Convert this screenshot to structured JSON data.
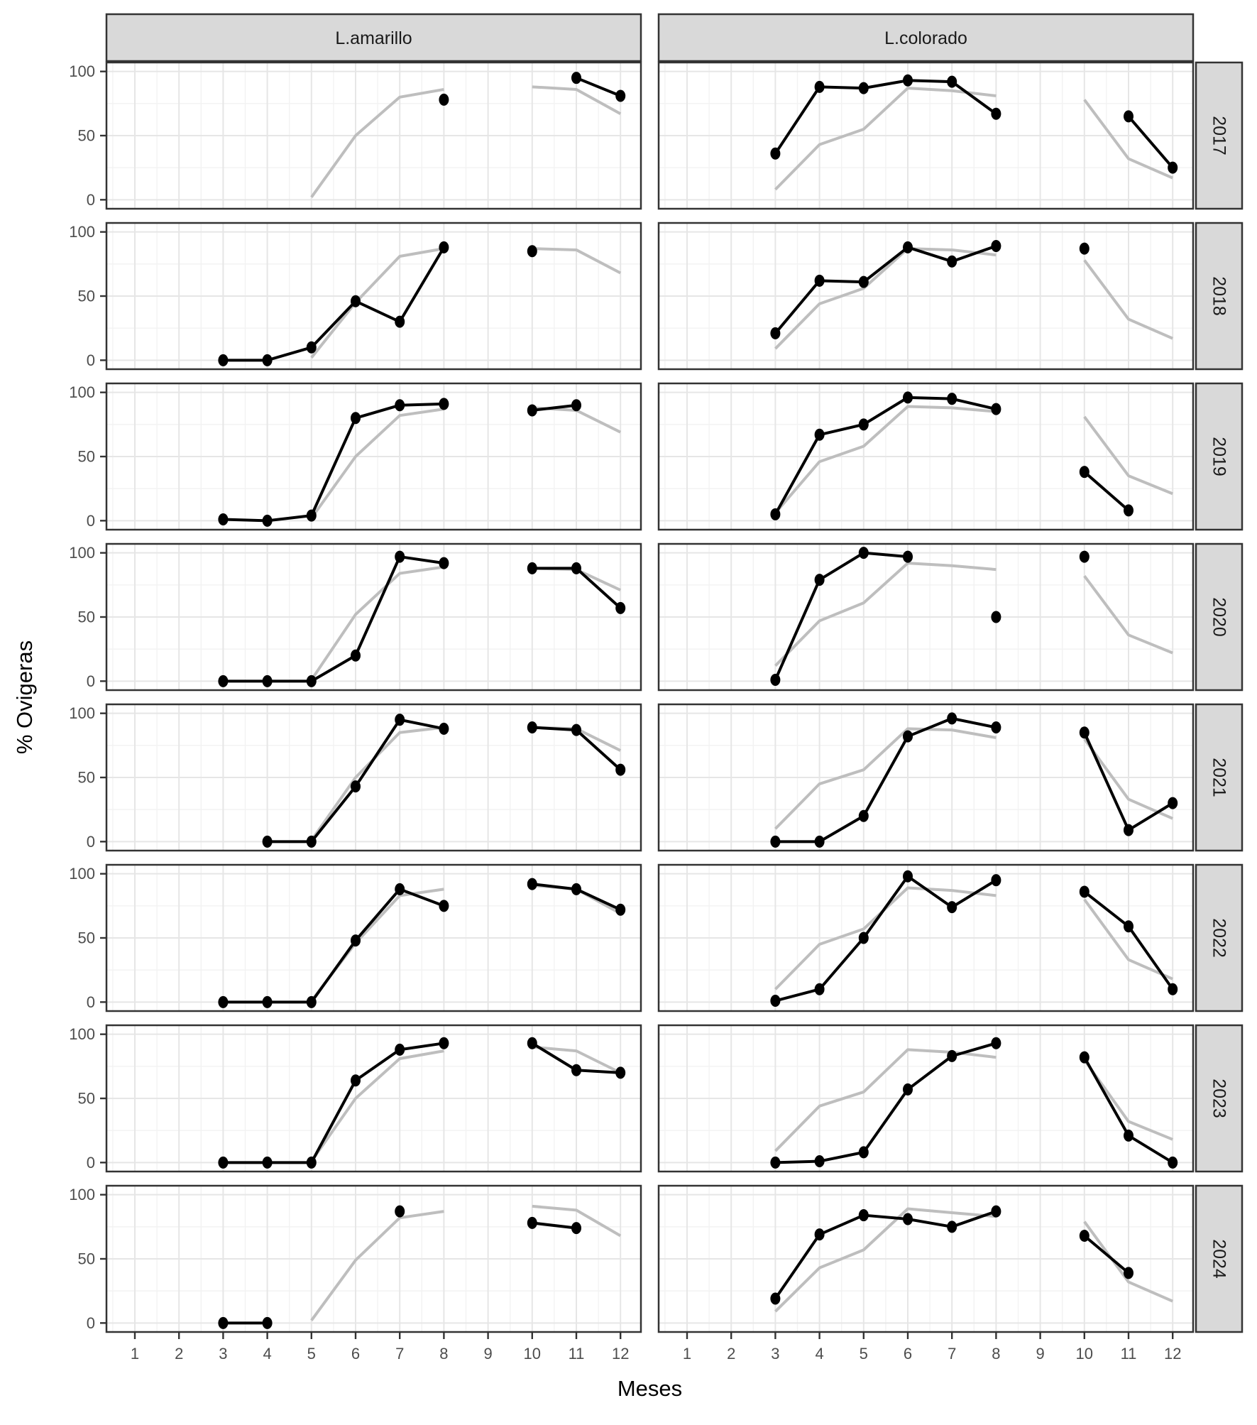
{
  "colors": {
    "background": "#ffffff",
    "strip_fill": "#d9d9d9",
    "strip_border": "#333333",
    "strip_text": "#1a1a1a",
    "panel_border": "#333333",
    "grid_major": "#e6e6e6",
    "grid_minor": "#f2f2f2",
    "observed_series": "#000000",
    "reference_series": "#bebebe",
    "tick_mark": "#333333",
    "tick_label": "#4d4d4d",
    "axis_title": "#000000"
  },
  "chart_data": {
    "type": "line",
    "x_label": "Meses",
    "y_label": "% Ovigeras",
    "x_ticks": [
      1,
      2,
      3,
      4,
      5,
      6,
      7,
      8,
      9,
      10,
      11,
      12
    ],
    "y_ticks": [
      0,
      50,
      100
    ],
    "y_range": [
      -7,
      107
    ],
    "grid": "on",
    "legend_position": "none",
    "columns": [
      "L.amarillo",
      "L.colorado"
    ],
    "rows": [
      "2017",
      "2018",
      "2019",
      "2020",
      "2021",
      "2022",
      "2023",
      "2024"
    ],
    "series_legend": [
      {
        "key": "observed",
        "style": "black line with points"
      },
      {
        "key": "reference",
        "style": "gray line, no points"
      }
    ],
    "panels": [
      {
        "col": 0,
        "row": 0,
        "observed": [
          [
            8,
            78
          ],
          [
            11,
            95
          ],
          [
            12,
            81
          ]
        ],
        "reference": [
          [
            5,
            2
          ],
          [
            6,
            50
          ],
          [
            7,
            80
          ],
          [
            8,
            86
          ],
          [
            10,
            88
          ],
          [
            11,
            86
          ],
          [
            12,
            67
          ]
        ]
      },
      {
        "col": 1,
        "row": 0,
        "observed": [
          [
            3,
            36
          ],
          [
            4,
            88
          ],
          [
            5,
            87
          ],
          [
            6,
            93
          ],
          [
            7,
            92
          ],
          [
            8,
            67
          ],
          [
            11,
            65
          ],
          [
            12,
            25
          ]
        ],
        "reference": [
          [
            3,
            8
          ],
          [
            4,
            43
          ],
          [
            5,
            55
          ],
          [
            6,
            87
          ],
          [
            7,
            85
          ],
          [
            8,
            81
          ],
          [
            10,
            78
          ],
          [
            11,
            32
          ],
          [
            12,
            17
          ]
        ]
      },
      {
        "col": 0,
        "row": 1,
        "observed": [
          [
            3,
            0
          ],
          [
            4,
            0
          ],
          [
            5,
            10
          ],
          [
            6,
            46
          ],
          [
            7,
            30
          ],
          [
            8,
            88
          ],
          [
            10,
            85
          ]
        ],
        "reference": [
          [
            5,
            2
          ],
          [
            6,
            45
          ],
          [
            7,
            81
          ],
          [
            8,
            87
          ],
          [
            10,
            87
          ],
          [
            11,
            86
          ],
          [
            12,
            68
          ]
        ]
      },
      {
        "col": 1,
        "row": 1,
        "observed": [
          [
            3,
            21
          ],
          [
            4,
            62
          ],
          [
            5,
            61
          ],
          [
            6,
            88
          ],
          [
            7,
            77
          ],
          [
            8,
            89
          ],
          [
            10,
            87
          ]
        ],
        "reference": [
          [
            3,
            9
          ],
          [
            4,
            44
          ],
          [
            5,
            56
          ],
          [
            6,
            87
          ],
          [
            7,
            86
          ],
          [
            8,
            82
          ],
          [
            10,
            78
          ],
          [
            11,
            32
          ],
          [
            12,
            17
          ]
        ]
      },
      {
        "col": 0,
        "row": 2,
        "observed": [
          [
            3,
            1
          ],
          [
            4,
            0
          ],
          [
            5,
            4
          ],
          [
            6,
            80
          ],
          [
            7,
            90
          ],
          [
            8,
            91
          ],
          [
            10,
            86
          ],
          [
            11,
            90
          ]
        ],
        "reference": [
          [
            5,
            2
          ],
          [
            6,
            50
          ],
          [
            7,
            82
          ],
          [
            8,
            87
          ],
          [
            10,
            88
          ],
          [
            11,
            86
          ],
          [
            12,
            69
          ]
        ]
      },
      {
        "col": 1,
        "row": 2,
        "observed": [
          [
            3,
            5
          ],
          [
            4,
            67
          ],
          [
            5,
            75
          ],
          [
            6,
            96
          ],
          [
            7,
            95
          ],
          [
            8,
            87
          ],
          [
            10,
            38
          ],
          [
            11,
            8
          ]
        ],
        "reference": [
          [
            3,
            6
          ],
          [
            4,
            46
          ],
          [
            5,
            58
          ],
          [
            6,
            89
          ],
          [
            7,
            88
          ],
          [
            8,
            85
          ],
          [
            10,
            81
          ],
          [
            11,
            35
          ],
          [
            12,
            21
          ]
        ]
      },
      {
        "col": 0,
        "row": 3,
        "observed": [
          [
            3,
            0
          ],
          [
            4,
            0
          ],
          [
            5,
            0
          ],
          [
            6,
            20
          ],
          [
            7,
            97
          ],
          [
            8,
            92
          ],
          [
            10,
            88
          ],
          [
            11,
            88
          ],
          [
            12,
            57
          ]
        ],
        "reference": [
          [
            5,
            1
          ],
          [
            6,
            52
          ],
          [
            7,
            84
          ],
          [
            8,
            89
          ],
          [
            10,
            88
          ],
          [
            11,
            87
          ],
          [
            12,
            71
          ]
        ]
      },
      {
        "col": 1,
        "row": 3,
        "observed": [
          [
            3,
            1
          ],
          [
            4,
            79
          ],
          [
            5,
            100
          ],
          [
            6,
            97
          ],
          [
            8,
            50
          ],
          [
            10,
            97
          ]
        ],
        "reference": [
          [
            3,
            12
          ],
          [
            4,
            47
          ],
          [
            5,
            61
          ],
          [
            6,
            92
          ],
          [
            7,
            90
          ],
          [
            8,
            87
          ],
          [
            10,
            82
          ],
          [
            11,
            36
          ],
          [
            12,
            22
          ]
        ]
      },
      {
        "col": 0,
        "row": 4,
        "observed": [
          [
            4,
            0
          ],
          [
            5,
            0
          ],
          [
            6,
            43
          ],
          [
            7,
            95
          ],
          [
            8,
            88
          ],
          [
            10,
            89
          ],
          [
            11,
            87
          ],
          [
            12,
            56
          ]
        ],
        "reference": [
          [
            5,
            1
          ],
          [
            6,
            50
          ],
          [
            7,
            85
          ],
          [
            8,
            89
          ],
          [
            10,
            89
          ],
          [
            11,
            88
          ],
          [
            12,
            71
          ]
        ]
      },
      {
        "col": 1,
        "row": 4,
        "observed": [
          [
            3,
            0
          ],
          [
            4,
            0
          ],
          [
            5,
            20
          ],
          [
            6,
            82
          ],
          [
            7,
            96
          ],
          [
            8,
            89
          ],
          [
            10,
            85
          ],
          [
            11,
            9
          ],
          [
            12,
            30
          ]
        ],
        "reference": [
          [
            3,
            10
          ],
          [
            4,
            45
          ],
          [
            5,
            56
          ],
          [
            6,
            88
          ],
          [
            7,
            87
          ],
          [
            8,
            81
          ],
          [
            10,
            80
          ],
          [
            11,
            33
          ],
          [
            12,
            18
          ]
        ]
      },
      {
        "col": 0,
        "row": 5,
        "observed": [
          [
            3,
            0
          ],
          [
            4,
            0
          ],
          [
            5,
            0
          ],
          [
            6,
            48
          ],
          [
            7,
            88
          ],
          [
            8,
            75
          ],
          [
            10,
            92
          ],
          [
            11,
            88
          ],
          [
            12,
            72
          ]
        ],
        "reference": [
          [
            5,
            1
          ],
          [
            6,
            46
          ],
          [
            7,
            83
          ],
          [
            8,
            88
          ],
          [
            10,
            91
          ],
          [
            11,
            88
          ],
          [
            12,
            69
          ]
        ]
      },
      {
        "col": 1,
        "row": 5,
        "observed": [
          [
            3,
            1
          ],
          [
            4,
            10
          ],
          [
            5,
            50
          ],
          [
            6,
            98
          ],
          [
            7,
            74
          ],
          [
            8,
            95
          ],
          [
            10,
            86
          ],
          [
            11,
            59
          ],
          [
            12,
            10
          ]
        ],
        "reference": [
          [
            3,
            10
          ],
          [
            4,
            45
          ],
          [
            5,
            57
          ],
          [
            6,
            89
          ],
          [
            7,
            87
          ],
          [
            8,
            83
          ],
          [
            10,
            80
          ],
          [
            11,
            33
          ],
          [
            12,
            18
          ]
        ]
      },
      {
        "col": 0,
        "row": 6,
        "observed": [
          [
            3,
            0
          ],
          [
            4,
            0
          ],
          [
            5,
            0
          ],
          [
            6,
            64
          ],
          [
            7,
            88
          ],
          [
            8,
            93
          ],
          [
            10,
            93
          ],
          [
            11,
            72
          ],
          [
            12,
            70
          ]
        ],
        "reference": [
          [
            5,
            1
          ],
          [
            6,
            50
          ],
          [
            7,
            81
          ],
          [
            8,
            87
          ],
          [
            10,
            90
          ],
          [
            11,
            87
          ],
          [
            12,
            70
          ]
        ]
      },
      {
        "col": 1,
        "row": 6,
        "observed": [
          [
            3,
            0
          ],
          [
            4,
            1
          ],
          [
            5,
            8
          ],
          [
            6,
            57
          ],
          [
            7,
            83
          ],
          [
            8,
            93
          ],
          [
            10,
            82
          ],
          [
            11,
            21
          ],
          [
            12,
            0
          ]
        ],
        "reference": [
          [
            3,
            9
          ],
          [
            4,
            44
          ],
          [
            5,
            55
          ],
          [
            6,
            88
          ],
          [
            7,
            86
          ],
          [
            8,
            82
          ],
          [
            10,
            80
          ],
          [
            11,
            32
          ],
          [
            12,
            18
          ]
        ]
      },
      {
        "col": 0,
        "row": 7,
        "observed": [
          [
            3,
            0
          ],
          [
            4,
            0
          ],
          [
            7,
            87
          ],
          [
            10,
            78
          ],
          [
            11,
            74
          ]
        ],
        "reference": [
          [
            5,
            2
          ],
          [
            6,
            49
          ],
          [
            7,
            82
          ],
          [
            8,
            87
          ],
          [
            10,
            91
          ],
          [
            11,
            88
          ],
          [
            12,
            68
          ]
        ]
      },
      {
        "col": 1,
        "row": 7,
        "observed": [
          [
            3,
            19
          ],
          [
            4,
            69
          ],
          [
            5,
            84
          ],
          [
            6,
            81
          ],
          [
            7,
            75
          ],
          [
            8,
            87
          ],
          [
            10,
            68
          ],
          [
            11,
            39
          ]
        ],
        "reference": [
          [
            3,
            9
          ],
          [
            4,
            43
          ],
          [
            5,
            57
          ],
          [
            6,
            89
          ],
          [
            7,
            86
          ],
          [
            8,
            83
          ],
          [
            10,
            79
          ],
          [
            11,
            32
          ],
          [
            12,
            17
          ]
        ]
      }
    ]
  }
}
